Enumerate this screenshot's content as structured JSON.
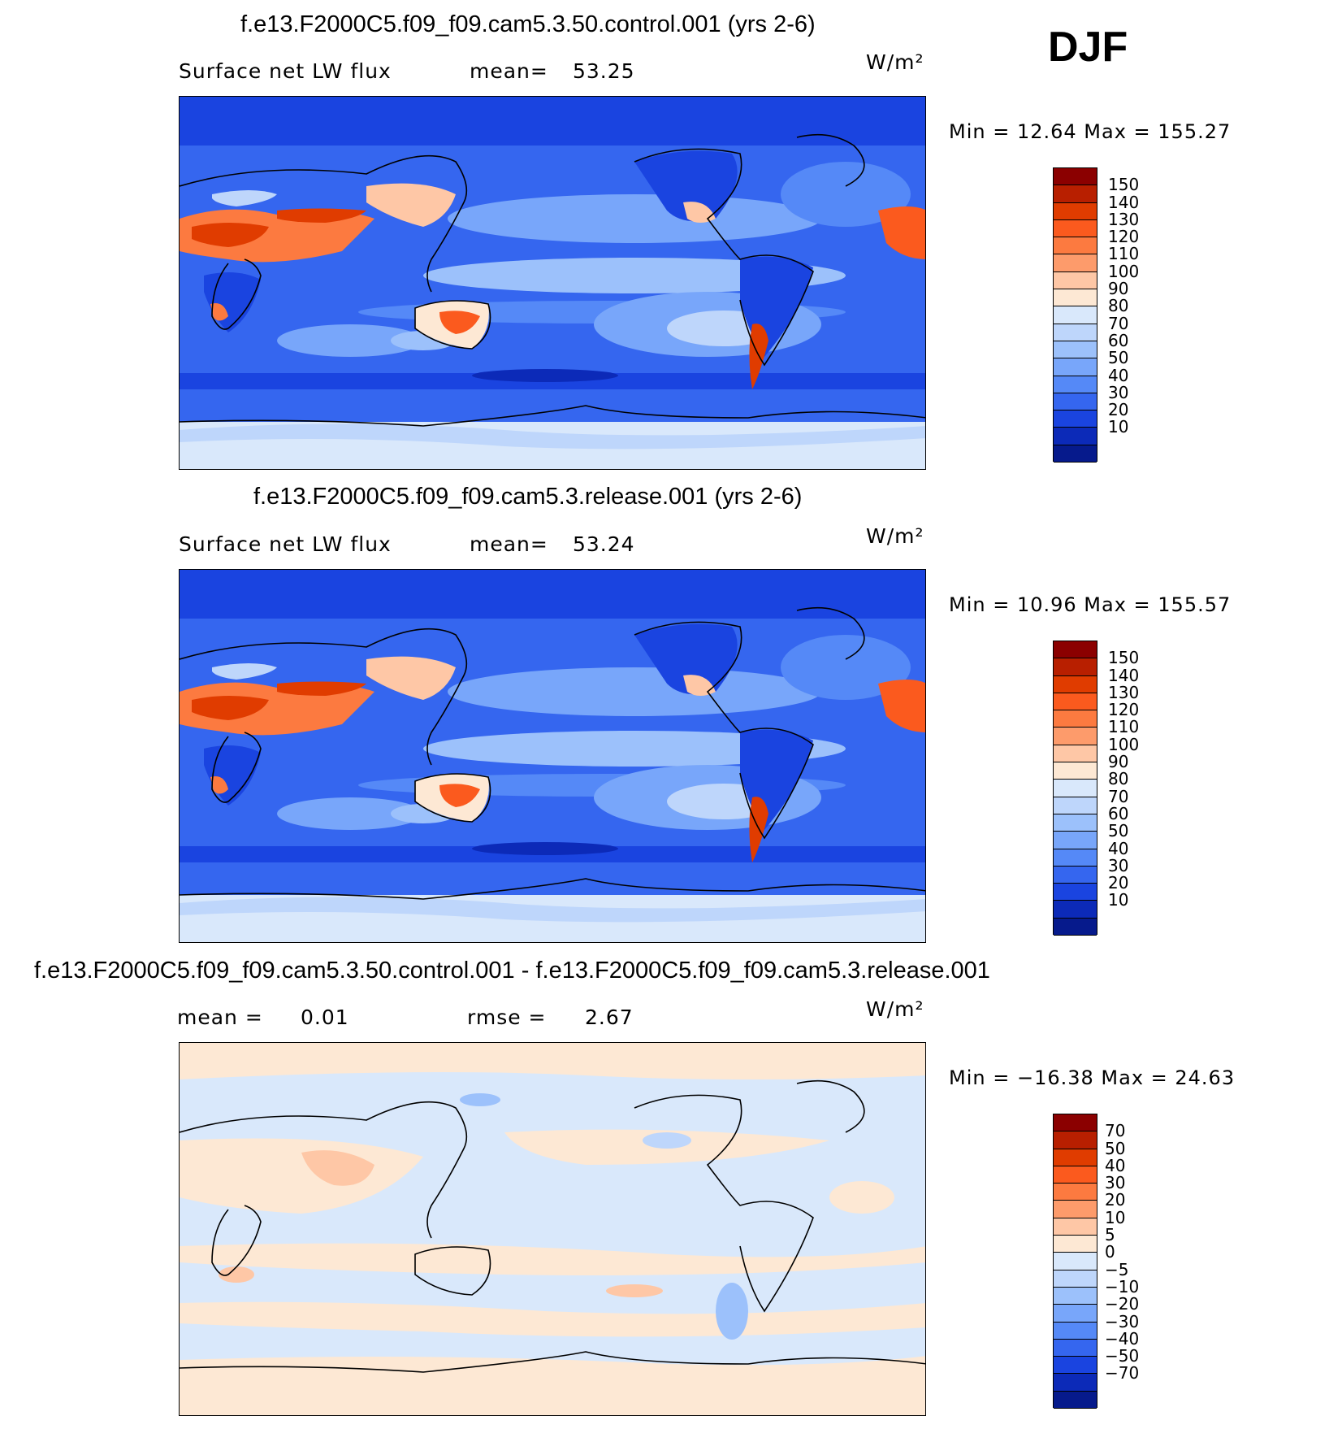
{
  "season": "DJF",
  "panels": [
    {
      "id": "control",
      "title": "f.e13.F2000C5.f09_f09.cam5.3.50.control.001 (yrs 2-6)",
      "left_label": "Surface net LW flux",
      "stat_label": "mean=",
      "stat_value": "53.25",
      "units": "W/m²",
      "minmax": "Min =   12.64 Max = 155.27",
      "colorbar": {
        "labels": [
          "150",
          "140",
          "130",
          "120",
          "110",
          "100",
          "90",
          "80",
          "70",
          "60",
          "50",
          "40",
          "30",
          "20",
          "10"
        ],
        "colors": [
          "#8b0000",
          "#b81f00",
          "#e03c00",
          "#fb5a1e",
          "#fc7a40",
          "#fd9b6b",
          "#fec7a6",
          "#fde8d4",
          "#d9e8fb",
          "#bed6fb",
          "#9cc1fb",
          "#78a6fa",
          "#5589f7",
          "#3566ef",
          "#1a44e0",
          "#0c2ab8",
          "#061a8c"
        ]
      }
    },
    {
      "id": "release",
      "title": "f.e13.F2000C5.f09_f09.cam5.3.release.001 (yrs 2-6)",
      "left_label": "Surface net LW flux",
      "stat_label": "mean=",
      "stat_value": "53.24",
      "units": "W/m²",
      "minmax": "Min =   10.96 Max = 155.57",
      "colorbar": {
        "labels": [
          "150",
          "140",
          "130",
          "120",
          "110",
          "100",
          "90",
          "80",
          "70",
          "60",
          "50",
          "40",
          "30",
          "20",
          "10"
        ],
        "colors": [
          "#8b0000",
          "#b81f00",
          "#e03c00",
          "#fb5a1e",
          "#fc7a40",
          "#fd9b6b",
          "#fec7a6",
          "#fde8d4",
          "#d9e8fb",
          "#bed6fb",
          "#9cc1fb",
          "#78a6fa",
          "#5589f7",
          "#3566ef",
          "#1a44e0",
          "#0c2ab8",
          "#061a8c"
        ]
      }
    },
    {
      "id": "diff",
      "title": "f.e13.F2000C5.f09_f09.cam5.3.50.control.001 - f.e13.F2000C5.f09_f09.cam5.3.release.001",
      "left_label": "mean =",
      "left_value": "0.01",
      "stat_label": "rmse =",
      "stat_value": "2.67",
      "units": "W/m²",
      "minmax": "Min = −16.38 Max =   24.63",
      "colorbar": {
        "labels": [
          "70",
          "50",
          "40",
          "30",
          "20",
          "10",
          "5",
          "0",
          "−5",
          "−10",
          "−20",
          "−30",
          "−40",
          "−50",
          "−70"
        ],
        "colors": [
          "#8b0000",
          "#b81f00",
          "#e03c00",
          "#fb5a1e",
          "#fc7a40",
          "#fd9b6b",
          "#fec7a6",
          "#fde8d4",
          "#d9e8fb",
          "#bed6fb",
          "#9cc1fb",
          "#78a6fa",
          "#5589f7",
          "#3566ef",
          "#1a44e0",
          "#0c2ab8",
          "#061a8c"
        ]
      }
    }
  ]
}
